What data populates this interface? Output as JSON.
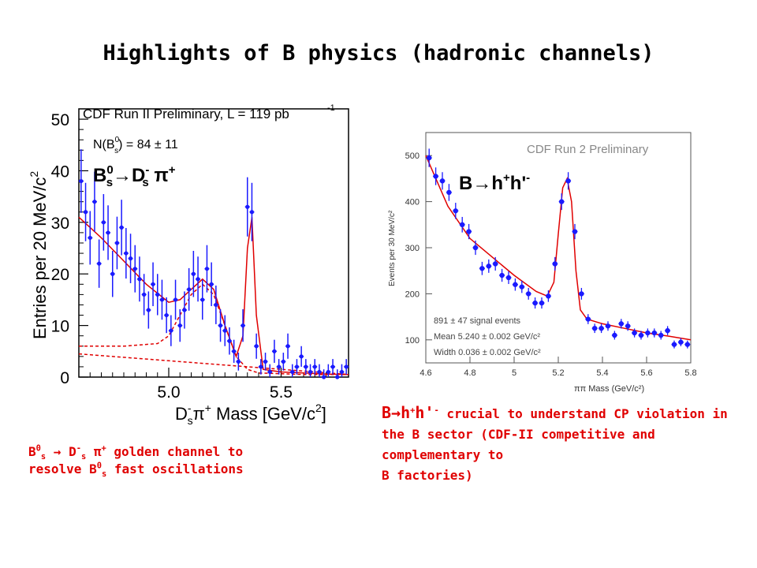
{
  "slide": {
    "title": "Highlights of B physics (hadronic channels)",
    "colors": {
      "accent": "#e00000",
      "data": "#1a1aff",
      "fit": "#e00000",
      "text": "#000000"
    }
  },
  "left_plot": {
    "header": "CDF Run II Preliminary, L = 119 pb",
    "header_exp": "-1",
    "yield_pre": "N(B",
    "yield_sup": "0",
    "yield_sub": "s",
    "yield_post": ") = 84 ± 11",
    "label_main": "B",
    "label_sup1": "0",
    "label_sub1": "s",
    "label_arrow": "→",
    "label_d": "D",
    "label_sup2": "-",
    "label_sub2": "s",
    "label_pi": " π",
    "label_sup3": "+",
    "ylabel": "Entries per 20 MeV/c",
    "ylabel_exp": "2",
    "xlabel_pre": "D",
    "xlabel_sup": "-",
    "xlabel_sub": "s",
    "xlabel_mid": "π",
    "xlabel_sup2": "+",
    "xlabel_post": " Mass [GeV/c",
    "xlabel_exp": "2",
    "xlabel_end": "]"
  },
  "right_plot": {
    "header": "CDF Run 2 Preliminary",
    "label_b": "B",
    "label_arrow": "→",
    "label_h": "h",
    "label_sup1": "+",
    "label_h2": "h'",
    "label_sup2": "-",
    "ylabel": "Events per 30 MeV/c²",
    "xlabel": "ππ Mass (GeV/c²)",
    "stat1": "891 ± 47 signal events",
    "stat2": "Mean 5.240 ± 0.002 GeV/c²",
    "stat3": "Width 0.036 ± 0.002 GeV/c²"
  },
  "captions": {
    "left_b": "B",
    "left_sup1": "0",
    "left_sub1": "s",
    "left_arrow": " → D",
    "left_sup2": "-",
    "left_sub2": "s",
    "left_pi": " π",
    "left_sup3": "+",
    "left_text1": " golden channel to",
    "left_text2": "resolve B",
    "left_sup4": "0",
    "left_sub4": "s",
    "left_text3": " fast oscillations",
    "right_b": "B",
    "right_arrow": "→",
    "right_h": "h",
    "right_sup1": "+",
    "right_h2": "h'",
    "right_sup2": "-",
    "right_text1": " crucial to understand CP violation in the B sector (CDF-II competitive and complementary to",
    "right_text2": "B factories)"
  },
  "chart_data": [
    {
      "type": "scatter",
      "title": "CDF Run II Preliminary, L = 119 pb-1",
      "xlabel": "D-s π+ Mass [GeV/c2]",
      "ylabel": "Entries per 20 MeV/c2",
      "xlim": [
        4.6,
        5.8
      ],
      "ylim": [
        0,
        52
      ],
      "xticks": [
        5.0,
        5.5
      ],
      "yticks": [
        0,
        10,
        20,
        30,
        40,
        50
      ],
      "grid": false,
      "series": [
        {
          "x": [
            4.61,
            4.63,
            4.65,
            4.67,
            4.69,
            4.71,
            4.73,
            4.75,
            4.77,
            4.79,
            4.81,
            4.83,
            4.85,
            4.87,
            4.89,
            4.91,
            4.93,
            4.95,
            4.97,
            4.99,
            5.01,
            5.03,
            5.05,
            5.07,
            5.09,
            5.11,
            5.13,
            5.15,
            5.17,
            5.19,
            5.21,
            5.23,
            5.25,
            5.27,
            5.29,
            5.31,
            5.33,
            5.35,
            5.37,
            5.39,
            5.41,
            5.43,
            5.45,
            5.47,
            5.49,
            5.51,
            5.53,
            5.55,
            5.57,
            5.59,
            5.61,
            5.63,
            5.65,
            5.67,
            5.69,
            5.71,
            5.73,
            5.75,
            5.77,
            5.79
          ],
          "values": [
            38,
            32,
            27,
            34,
            22,
            30,
            28,
            20,
            26,
            29,
            24,
            23,
            21,
            19,
            16,
            13,
            18,
            16,
            15,
            12,
            9,
            15,
            10,
            13,
            17,
            20,
            19,
            15,
            21,
            18,
            14,
            10,
            9,
            7,
            5,
            3,
            10,
            33,
            32,
            6,
            2,
            3,
            1,
            5,
            2,
            3,
            6,
            1,
            2,
            4,
            2,
            1,
            2,
            1,
            0,
            1,
            2,
            0,
            1,
            2
          ]
        }
      ],
      "fit_total": {
        "x": [
          4.6,
          4.7,
          4.8,
          4.9,
          5.0,
          5.05,
          5.1,
          5.15,
          5.2,
          5.25,
          5.3,
          5.33,
          5.35,
          5.37,
          5.39,
          5.42,
          5.5,
          5.6,
          5.7,
          5.8
        ],
        "values": [
          31,
          27,
          22.5,
          18,
          14.5,
          15,
          17,
          19,
          17,
          10,
          4,
          8,
          25,
          31,
          12,
          1.5,
          1,
          0.8,
          0.6,
          0.5
        ]
      },
      "fit_component_dashed": {
        "x": [
          4.6,
          4.8,
          4.95,
          5.0,
          5.05,
          5.1,
          5.15,
          5.2,
          5.25,
          5.3,
          5.35,
          5.4,
          5.6,
          5.8
        ],
        "values": [
          6,
          6,
          6.5,
          8,
          12,
          16,
          18,
          16,
          10,
          4,
          1.5,
          0.8,
          0.5,
          0.5
        ]
      },
      "fit_background_dashed": {
        "x": [
          4.6,
          5.8
        ],
        "values": [
          4.5,
          0.5
        ]
      }
    },
    {
      "type": "scatter",
      "title": "CDF Run 2 Preliminary",
      "xlabel": "ππ Mass (GeV/c²)",
      "ylabel": "Events per 30 MeV/c²",
      "xlim": [
        4.6,
        5.8
      ],
      "ylim": [
        50,
        550
      ],
      "xticks": [
        4.6,
        4.8,
        5,
        5.2,
        5.4,
        5.6,
        5.8
      ],
      "yticks": [
        100,
        200,
        300,
        400,
        500
      ],
      "grid": false,
      "series": [
        {
          "x": [
            4.615,
            4.645,
            4.675,
            4.705,
            4.735,
            4.765,
            4.795,
            4.825,
            4.855,
            4.885,
            4.915,
            4.945,
            4.975,
            5.005,
            5.035,
            5.065,
            5.095,
            5.125,
            5.155,
            5.185,
            5.215,
            5.245,
            5.275,
            5.305,
            5.335,
            5.365,
            5.395,
            5.425,
            5.455,
            5.485,
            5.515,
            5.545,
            5.575,
            5.605,
            5.635,
            5.665,
            5.695,
            5.725,
            5.755,
            5.785
          ],
          "values": [
            495,
            455,
            445,
            420,
            380,
            350,
            335,
            300,
            255,
            260,
            265,
            240,
            235,
            220,
            215,
            200,
            180,
            180,
            195,
            265,
            400,
            445,
            335,
            200,
            145,
            125,
            125,
            130,
            110,
            135,
            130,
            115,
            110,
            115,
            115,
            110,
            120,
            90,
            95,
            90
          ]
        }
      ],
      "fit_total": {
        "x": [
          4.6,
          4.7,
          4.8,
          4.9,
          5.0,
          5.1,
          5.15,
          5.18,
          5.2,
          5.22,
          5.24,
          5.26,
          5.28,
          5.3,
          5.33,
          5.4,
          5.5,
          5.6,
          5.7,
          5.8
        ],
        "values": [
          500,
          390,
          320,
          280,
          240,
          205,
          195,
          225,
          330,
          430,
          450,
          400,
          250,
          165,
          145,
          135,
          125,
          115,
          108,
          100
        ]
      }
    }
  ]
}
